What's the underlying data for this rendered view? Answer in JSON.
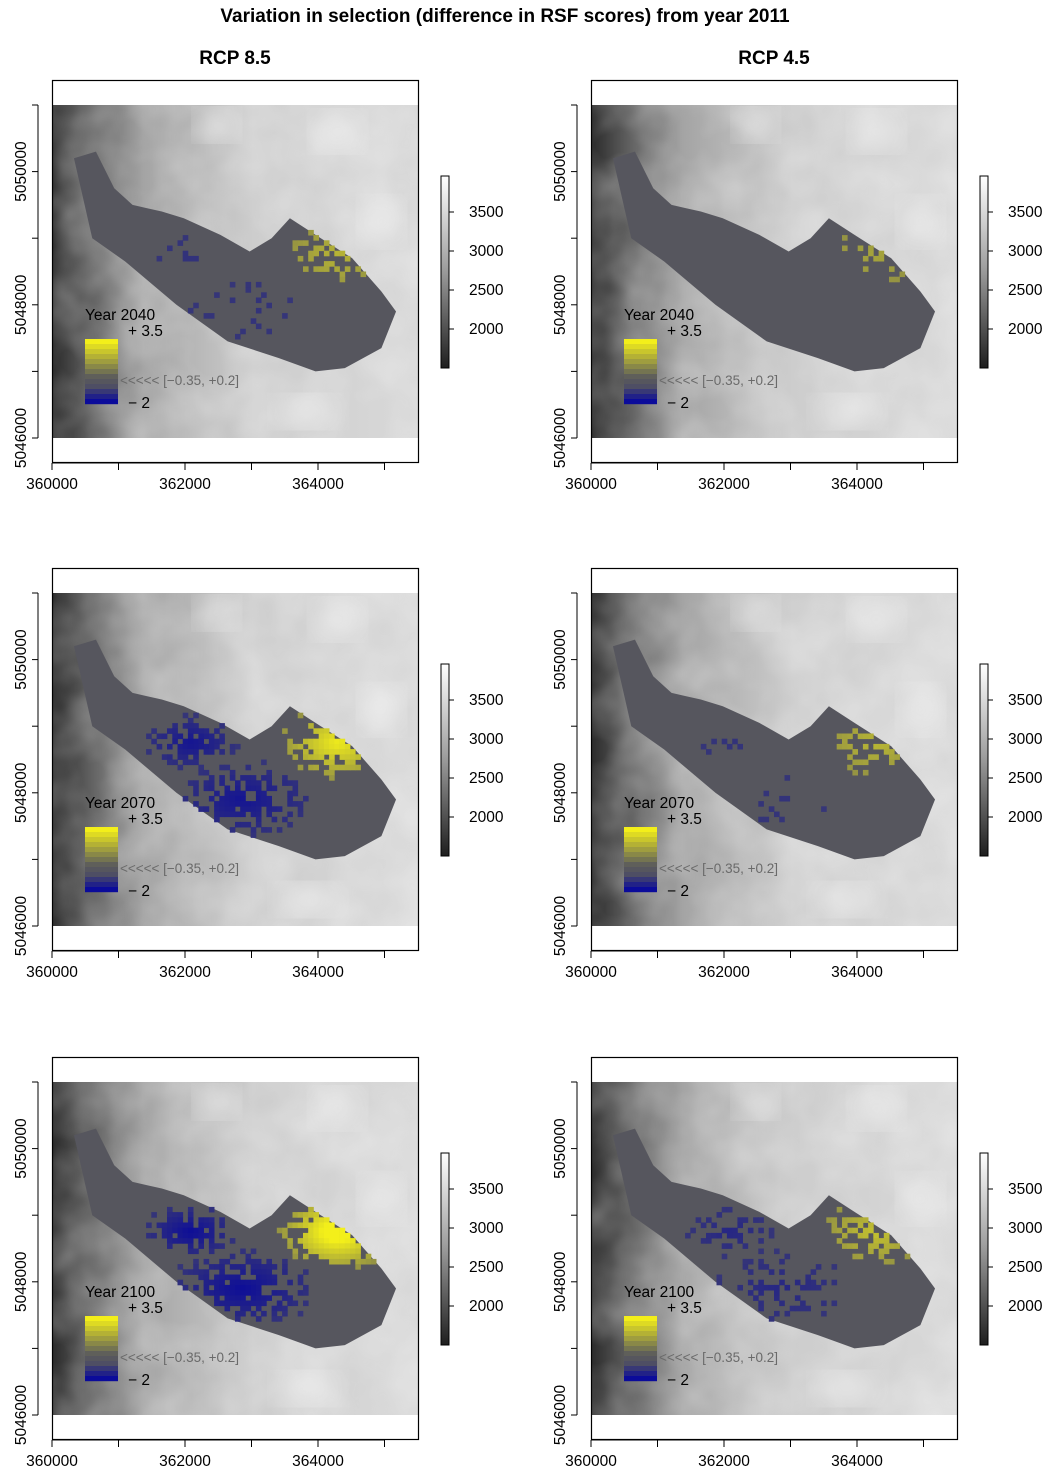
{
  "title": "Variation in selection (difference in RSF scores) from year 2011",
  "columns": [
    "RCP 8.5",
    "RCP 4.5"
  ],
  "chart_data": {
    "type": "heatmap",
    "title": "Variation in selection (difference in RSF scores) from year 2011",
    "x_ticks": [
      "360000",
      "362000",
      "364000"
    ],
    "y_ticks": [
      "5046000",
      "5048000",
      "5050000"
    ],
    "elevation_colorbar": {
      "ticks": [
        "3500",
        "3000",
        "2500",
        "2000"
      ],
      "colors": {
        "low": "#1e1e1e",
        "high": "#ffffff"
      }
    },
    "difference_legend": {
      "max_label": "+ 3.5",
      "min_label": "− 2",
      "neutral_label": "<<<<< [−0.35, +0.2]",
      "colors": {
        "positive": "#f3ef1a",
        "neutral": "#56565e",
        "negative": "#0b0b9a"
      }
    },
    "panels": [
      {
        "scenario": "RCP 8.5",
        "year_label": "Year 2040",
        "gain": 0.3,
        "loss": 0.15
      },
      {
        "scenario": "RCP 4.5",
        "year_label": "Year 2040",
        "gain": 0.18,
        "loss": 0.0
      },
      {
        "scenario": "RCP 8.5",
        "year_label": "Year 2070",
        "gain": 0.7,
        "loss": 0.8
      },
      {
        "scenario": "RCP 4.5",
        "year_label": "Year 2070",
        "gain": 0.32,
        "loss": 0.12
      },
      {
        "scenario": "RCP 8.5",
        "year_label": "Year 2100",
        "gain": 0.95,
        "loss": 0.95
      },
      {
        "scenario": "RCP 4.5",
        "year_label": "Year 2100",
        "gain": 0.4,
        "loss": 0.4
      }
    ]
  }
}
